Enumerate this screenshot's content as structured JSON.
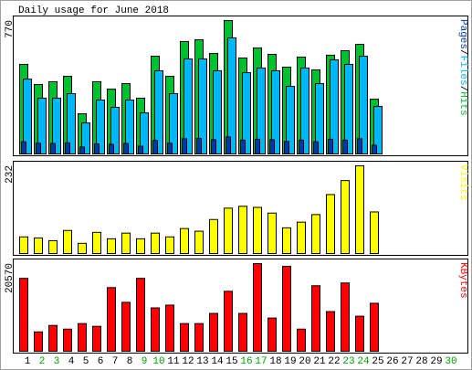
{
  "title": "Daily usage for June 2018",
  "chart_data": [
    {
      "type": "bar",
      "separator": "/",
      "ylim": [
        0,
        770
      ],
      "yticks": [
        770
      ],
      "series": [
        {
          "name": "Pages",
          "color": "#0038a8",
          "values": [
            70,
            62,
            60,
            64,
            40,
            58,
            55,
            60,
            45,
            78,
            62,
            88,
            90,
            82,
            98,
            80,
            85,
            82,
            72,
            80,
            70,
            85,
            80,
            88,
            50,
            null,
            null,
            null,
            null,
            null
          ]
        },
        {
          "name": "Files",
          "color": "#00b8f8",
          "values": [
            432,
            322,
            322,
            348,
            179,
            311,
            269,
            311,
            237,
            480,
            348,
            549,
            549,
            480,
            670,
            469,
            496,
            480,
            390,
            496,
            406,
            543,
            517,
            564,
            274,
            null,
            null,
            null,
            null,
            null
          ]
        },
        {
          "name": "Hits",
          "color": "#00c030",
          "values": [
            517,
            401,
            417,
            448,
            232,
            417,
            374,
            406,
            322,
            564,
            448,
            649,
            659,
            580,
            770,
            554,
            612,
            575,
            501,
            559,
            485,
            570,
            596,
            633,
            316,
            null,
            null,
            null,
            null,
            null
          ]
        }
      ]
    },
    {
      "type": "bar",
      "ylim": [
        0,
        232
      ],
      "yticks": [
        232
      ],
      "series": [
        {
          "name": "Visits",
          "color": "#ffff00",
          "values": [
            44,
            41,
            34,
            61,
            27,
            56,
            39,
            54,
            39,
            54,
            44,
            66,
            59,
            90,
            120,
            125,
            122,
            107,
            68,
            83,
            103,
            156,
            193,
            232,
            110,
            null,
            null,
            null,
            null,
            null
          ]
        }
      ]
    },
    {
      "type": "bar",
      "ylim": [
        0,
        20570
      ],
      "yticks": [
        20570
      ],
      "categories": [
        1,
        2,
        3,
        4,
        5,
        6,
        7,
        8,
        9,
        10,
        11,
        12,
        13,
        14,
        15,
        16,
        17,
        18,
        19,
        20,
        21,
        22,
        23,
        24,
        25,
        26,
        27,
        28,
        29,
        30
      ],
      "weekend": [
        2,
        3,
        9,
        10,
        16,
        17,
        23,
        24,
        30
      ],
      "weekend_color": "#00a000",
      "series": [
        {
          "name": "KBytes",
          "color": "#ff0000",
          "values": [
            17104,
            4547,
            6062,
            5196,
            6495,
            5846,
            14939,
            11475,
            17104,
            10176,
            10825,
            6495,
            6495,
            8877,
            14073,
            8877,
            20570,
            7794,
            19918,
            5196,
            15372,
            9310,
            16021,
            8227,
            11258,
            null,
            null,
            null,
            null,
            null
          ]
        }
      ]
    }
  ]
}
